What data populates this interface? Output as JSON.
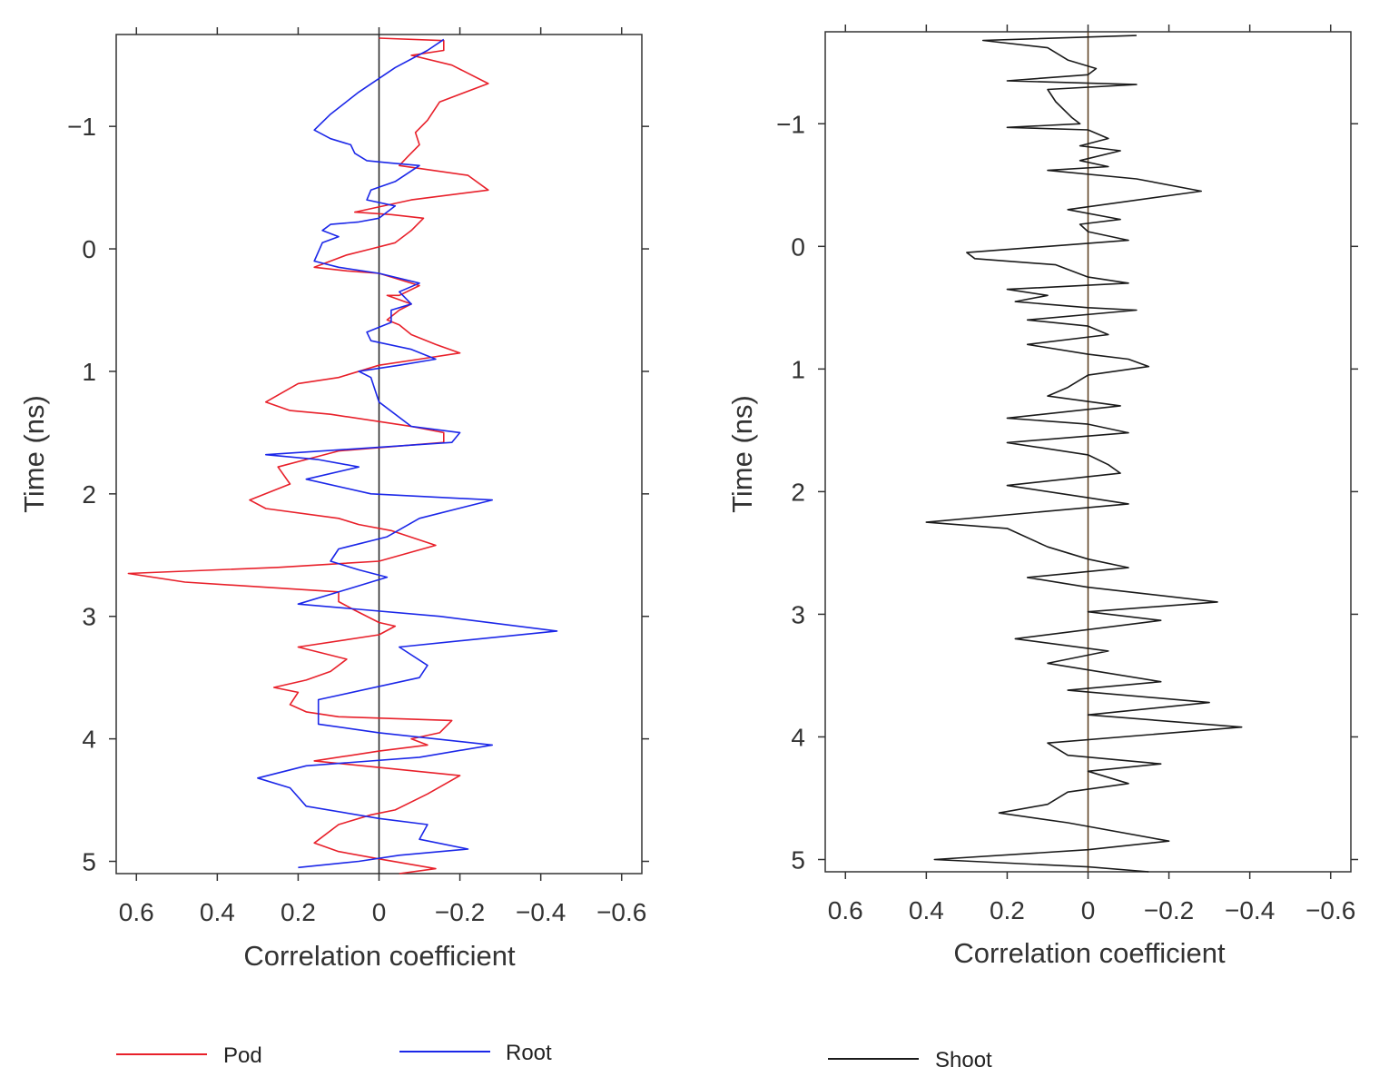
{
  "chart_data": [
    {
      "type": "line",
      "title": "",
      "xlabel": "Correlation coefficient",
      "ylabel": "Time (ns)",
      "xlim": [
        0.65,
        -0.65
      ],
      "ylim": [
        5.1,
        -1.75
      ],
      "x_ticks": [
        "0.6",
        "0.4",
        "0.2",
        "0",
        "−0.2",
        "−0.4",
        "−0.6"
      ],
      "x_tick_values": [
        0.6,
        0.4,
        0.2,
        0,
        -0.2,
        -0.4,
        -0.6
      ],
      "y_ticks": [
        "−1",
        "0",
        "1",
        "2",
        "3",
        "4",
        "5"
      ],
      "y_tick_values": [
        -1,
        0,
        1,
        2,
        3,
        4,
        5
      ],
      "reference_line_x": 0,
      "legend_position": "bottom-left",
      "series": [
        {
          "name": "Pod",
          "color": "#e8202a",
          "points": [
            [
              0.0,
              -1.72
            ],
            [
              -0.16,
              -1.7
            ],
            [
              -0.16,
              -1.62
            ],
            [
              -0.08,
              -1.58
            ],
            [
              -0.18,
              -1.5
            ],
            [
              -0.27,
              -1.35
            ],
            [
              -0.15,
              -1.2
            ],
            [
              -0.12,
              -1.05
            ],
            [
              -0.09,
              -0.95
            ],
            [
              -0.1,
              -0.85
            ],
            [
              -0.07,
              -0.75
            ],
            [
              -0.05,
              -0.68
            ],
            [
              -0.22,
              -0.6
            ],
            [
              -0.27,
              -0.48
            ],
            [
              -0.08,
              -0.4
            ],
            [
              0.06,
              -0.3
            ],
            [
              -0.03,
              -0.28
            ],
            [
              -0.11,
              -0.25
            ],
            [
              -0.08,
              -0.15
            ],
            [
              -0.04,
              -0.05
            ],
            [
              0.02,
              0.0
            ],
            [
              0.08,
              0.05
            ],
            [
              0.12,
              0.1
            ],
            [
              0.16,
              0.15
            ],
            [
              0.08,
              0.18
            ],
            [
              0.0,
              0.2
            ],
            [
              -0.1,
              0.3
            ],
            [
              -0.05,
              0.38
            ],
            [
              -0.02,
              0.38
            ],
            [
              -0.08,
              0.45
            ],
            [
              -0.05,
              0.5
            ],
            [
              -0.02,
              0.58
            ],
            [
              -0.05,
              0.62
            ],
            [
              -0.08,
              0.7
            ],
            [
              -0.14,
              0.78
            ],
            [
              -0.2,
              0.85
            ],
            [
              -0.1,
              0.9
            ],
            [
              0.0,
              0.95
            ],
            [
              0.1,
              1.05
            ],
            [
              0.2,
              1.1
            ],
            [
              0.28,
              1.25
            ],
            [
              0.22,
              1.32
            ],
            [
              0.12,
              1.35
            ],
            [
              -0.08,
              1.45
            ],
            [
              -0.16,
              1.5
            ],
            [
              -0.16,
              1.58
            ],
            [
              0.1,
              1.65
            ],
            [
              0.25,
              1.78
            ],
            [
              0.22,
              1.92
            ],
            [
              0.32,
              2.05
            ],
            [
              0.28,
              2.12
            ],
            [
              0.1,
              2.2
            ],
            [
              0.05,
              2.25
            ],
            [
              -0.03,
              2.3
            ],
            [
              -0.14,
              2.42
            ],
            [
              0.0,
              2.55
            ],
            [
              0.25,
              2.6
            ],
            [
              0.62,
              2.65
            ],
            [
              0.48,
              2.72
            ],
            [
              0.1,
              2.8
            ],
            [
              0.1,
              2.88
            ],
            [
              0.06,
              2.95
            ],
            [
              0.0,
              3.05
            ],
            [
              -0.04,
              3.08
            ],
            [
              0.0,
              3.15
            ],
            [
              0.2,
              3.25
            ],
            [
              0.08,
              3.35
            ],
            [
              0.12,
              3.45
            ],
            [
              0.18,
              3.52
            ],
            [
              0.26,
              3.58
            ],
            [
              0.2,
              3.62
            ],
            [
              0.22,
              3.72
            ],
            [
              0.18,
              3.78
            ],
            [
              0.1,
              3.82
            ],
            [
              -0.18,
              3.85
            ],
            [
              -0.15,
              3.95
            ],
            [
              -0.08,
              4.0
            ],
            [
              -0.12,
              4.05
            ],
            [
              0.0,
              4.1
            ],
            [
              0.16,
              4.18
            ],
            [
              -0.2,
              4.3
            ],
            [
              -0.12,
              4.45
            ],
            [
              -0.04,
              4.58
            ],
            [
              0.02,
              4.62
            ],
            [
              0.1,
              4.7
            ],
            [
              0.16,
              4.85
            ],
            [
              0.1,
              4.92
            ],
            [
              0.0,
              4.98
            ],
            [
              -0.14,
              5.06
            ],
            [
              -0.05,
              5.1
            ]
          ]
        },
        {
          "name": "Root",
          "color": "#1b27e8",
          "points": [
            [
              -0.16,
              -1.71
            ],
            [
              -0.12,
              -1.62
            ],
            [
              -0.04,
              -1.48
            ],
            [
              0.05,
              -1.28
            ],
            [
              0.12,
              -1.1
            ],
            [
              0.16,
              -0.97
            ],
            [
              0.12,
              -0.9
            ],
            [
              0.07,
              -0.85
            ],
            [
              0.06,
              -0.78
            ],
            [
              0.03,
              -0.72
            ],
            [
              -0.03,
              -0.7
            ],
            [
              -0.1,
              -0.68
            ],
            [
              -0.04,
              -0.55
            ],
            [
              0.02,
              -0.48
            ],
            [
              0.03,
              -0.4
            ],
            [
              -0.04,
              -0.35
            ],
            [
              0.0,
              -0.25
            ],
            [
              0.05,
              -0.22
            ],
            [
              0.12,
              -0.2
            ],
            [
              0.14,
              -0.15
            ],
            [
              0.1,
              -0.1
            ],
            [
              0.14,
              -0.05
            ],
            [
              0.16,
              0.1
            ],
            [
              0.1,
              0.15
            ],
            [
              0.0,
              0.2
            ],
            [
              -0.1,
              0.28
            ],
            [
              -0.05,
              0.35
            ],
            [
              -0.08,
              0.45
            ],
            [
              -0.03,
              0.5
            ],
            [
              -0.03,
              0.6
            ],
            [
              0.03,
              0.68
            ],
            [
              0.02,
              0.75
            ],
            [
              -0.08,
              0.82
            ],
            [
              -0.14,
              0.9
            ],
            [
              -0.05,
              0.95
            ],
            [
              0.05,
              1.0
            ],
            [
              0.02,
              1.05
            ],
            [
              0.0,
              1.25
            ],
            [
              -0.08,
              1.45
            ],
            [
              -0.2,
              1.5
            ],
            [
              -0.18,
              1.58
            ],
            [
              0.28,
              1.68
            ],
            [
              0.15,
              1.72
            ],
            [
              0.05,
              1.78
            ],
            [
              0.18,
              1.88
            ],
            [
              0.02,
              2.0
            ],
            [
              -0.28,
              2.05
            ],
            [
              -0.1,
              2.2
            ],
            [
              -0.02,
              2.35
            ],
            [
              0.1,
              2.45
            ],
            [
              0.12,
              2.55
            ],
            [
              0.05,
              2.62
            ],
            [
              -0.02,
              2.68
            ],
            [
              0.02,
              2.72
            ],
            [
              0.08,
              2.78
            ],
            [
              0.2,
              2.9
            ],
            [
              -0.15,
              3.0
            ],
            [
              -0.44,
              3.12
            ],
            [
              -0.05,
              3.25
            ],
            [
              -0.12,
              3.4
            ],
            [
              -0.1,
              3.5
            ],
            [
              0.15,
              3.68
            ],
            [
              0.15,
              3.88
            ],
            [
              0.0,
              3.95
            ],
            [
              -0.28,
              4.05
            ],
            [
              -0.1,
              4.15
            ],
            [
              0.18,
              4.22
            ],
            [
              0.3,
              4.32
            ],
            [
              0.22,
              4.4
            ],
            [
              0.18,
              4.55
            ],
            [
              0.0,
              4.65
            ],
            [
              -0.12,
              4.7
            ],
            [
              -0.1,
              4.82
            ],
            [
              -0.22,
              4.9
            ],
            [
              -0.05,
              4.95
            ],
            [
              0.05,
              5.0
            ],
            [
              0.2,
              5.05
            ]
          ]
        }
      ]
    },
    {
      "type": "line",
      "title": "",
      "xlabel": "Correlation coefficient",
      "ylabel": "Time (ns)",
      "xlim": [
        0.65,
        -0.65
      ],
      "ylim": [
        5.1,
        -1.75
      ],
      "x_ticks": [
        "0.6",
        "0.4",
        "0.2",
        "0",
        "−0.2",
        "−0.4",
        "−0.6"
      ],
      "x_tick_values": [
        0.6,
        0.4,
        0.2,
        0,
        -0.2,
        -0.4,
        -0.6
      ],
      "y_ticks": [
        "−1",
        "0",
        "1",
        "2",
        "3",
        "4",
        "5"
      ],
      "y_tick_values": [
        -1,
        0,
        1,
        2,
        3,
        4,
        5
      ],
      "reference_line_x": 0,
      "legend_position": "bottom-left",
      "series": [
        {
          "name": "Shoot",
          "color": "#1a1a1a",
          "points": [
            [
              -0.12,
              -1.72
            ],
            [
              0.26,
              -1.68
            ],
            [
              0.1,
              -1.62
            ],
            [
              0.05,
              -1.52
            ],
            [
              -0.02,
              -1.45
            ],
            [
              0.0,
              -1.4
            ],
            [
              0.2,
              -1.35
            ],
            [
              -0.12,
              -1.32
            ],
            [
              0.1,
              -1.28
            ],
            [
              0.08,
              -1.18
            ],
            [
              0.04,
              -1.05
            ],
            [
              0.02,
              -1.0
            ],
            [
              0.2,
              -0.97
            ],
            [
              0.0,
              -0.95
            ],
            [
              -0.05,
              -0.88
            ],
            [
              0.02,
              -0.82
            ],
            [
              -0.08,
              -0.78
            ],
            [
              0.02,
              -0.7
            ],
            [
              -0.05,
              -0.65
            ],
            [
              0.1,
              -0.62
            ],
            [
              -0.12,
              -0.55
            ],
            [
              -0.28,
              -0.45
            ],
            [
              0.05,
              -0.3
            ],
            [
              -0.08,
              -0.22
            ],
            [
              0.02,
              -0.18
            ],
            [
              0.0,
              -0.12
            ],
            [
              -0.1,
              -0.05
            ],
            [
              0.3,
              0.05
            ],
            [
              0.28,
              0.1
            ],
            [
              0.08,
              0.15
            ],
            [
              0.0,
              0.25
            ],
            [
              -0.1,
              0.3
            ],
            [
              0.2,
              0.35
            ],
            [
              0.1,
              0.4
            ],
            [
              0.18,
              0.45
            ],
            [
              0.0,
              0.5
            ],
            [
              -0.12,
              0.52
            ],
            [
              0.15,
              0.6
            ],
            [
              0.0,
              0.65
            ],
            [
              -0.05,
              0.72
            ],
            [
              0.15,
              0.8
            ],
            [
              0.0,
              0.88
            ],
            [
              -0.1,
              0.92
            ],
            [
              -0.15,
              0.98
            ],
            [
              0.0,
              1.05
            ],
            [
              0.05,
              1.15
            ],
            [
              0.1,
              1.22
            ],
            [
              -0.08,
              1.3
            ],
            [
              0.2,
              1.4
            ],
            [
              0.0,
              1.45
            ],
            [
              -0.1,
              1.52
            ],
            [
              0.2,
              1.6
            ],
            [
              0.0,
              1.7
            ],
            [
              -0.05,
              1.78
            ],
            [
              -0.08,
              1.85
            ],
            [
              0.2,
              1.95
            ],
            [
              0.0,
              2.05
            ],
            [
              -0.1,
              2.1
            ],
            [
              0.4,
              2.25
            ],
            [
              0.2,
              2.3
            ],
            [
              0.1,
              2.45
            ],
            [
              0.0,
              2.55
            ],
            [
              -0.1,
              2.62
            ],
            [
              0.15,
              2.7
            ],
            [
              0.0,
              2.78
            ],
            [
              -0.32,
              2.9
            ],
            [
              0.0,
              2.98
            ],
            [
              -0.18,
              3.05
            ],
            [
              0.18,
              3.2
            ],
            [
              -0.05,
              3.3
            ],
            [
              0.1,
              3.4
            ],
            [
              -0.18,
              3.55
            ],
            [
              0.05,
              3.62
            ],
            [
              -0.3,
              3.72
            ],
            [
              0.0,
              3.82
            ],
            [
              -0.38,
              3.92
            ],
            [
              0.1,
              4.05
            ],
            [
              0.05,
              4.15
            ],
            [
              -0.18,
              4.22
            ],
            [
              0.0,
              4.28
            ],
            [
              -0.1,
              4.38
            ],
            [
              0.05,
              4.45
            ],
            [
              0.1,
              4.55
            ],
            [
              0.22,
              4.62
            ],
            [
              0.05,
              4.7
            ],
            [
              -0.2,
              4.85
            ],
            [
              0.0,
              4.92
            ],
            [
              0.38,
              5.0
            ],
            [
              0.0,
              5.06
            ],
            [
              -0.15,
              5.1
            ]
          ]
        }
      ]
    }
  ]
}
